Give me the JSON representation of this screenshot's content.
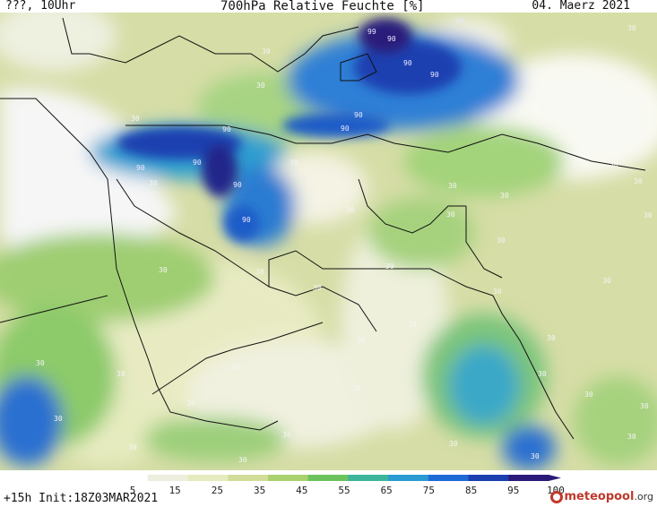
{
  "header": {
    "left": "???, 10Uhr",
    "title": "700hPa Relative Feuchte [%]",
    "date": "04. Maerz 2021"
  },
  "footer": {
    "init": "+15h Init:18Z03MAR2021",
    "logo_name": "meteopool",
    "logo_tld": ".org"
  },
  "colorbar": {
    "ticks": [
      "5",
      "15",
      "25",
      "35",
      "45",
      "55",
      "65",
      "75",
      "85",
      "95",
      "100"
    ],
    "colors": [
      "#ffffff",
      "#eeeedf",
      "#e6ebbf",
      "#d2dd9a",
      "#a9d16d",
      "#6cc35e",
      "#3db59b",
      "#2a9bd3",
      "#1e6bd6",
      "#1b3fb0",
      "#2b1a7a"
    ]
  },
  "contour_labels": {
    "values": [
      "90",
      "99",
      "90",
      "90",
      "90",
      "90",
      "90",
      "90",
      "90",
      "90",
      "90",
      "90",
      "30",
      "30",
      "30",
      "30",
      "30",
      "30",
      "30",
      "30",
      "30",
      "30",
      "30",
      "30",
      "30",
      "30",
      "30",
      "30",
      "30",
      "30",
      "30",
      "30",
      "30",
      "30",
      "30",
      "30",
      "30",
      "30",
      "30",
      "30",
      "30",
      "30",
      "30",
      "30",
      "30",
      "30",
      "30",
      "30",
      "30",
      "30",
      "30",
      "30"
    ]
  }
}
